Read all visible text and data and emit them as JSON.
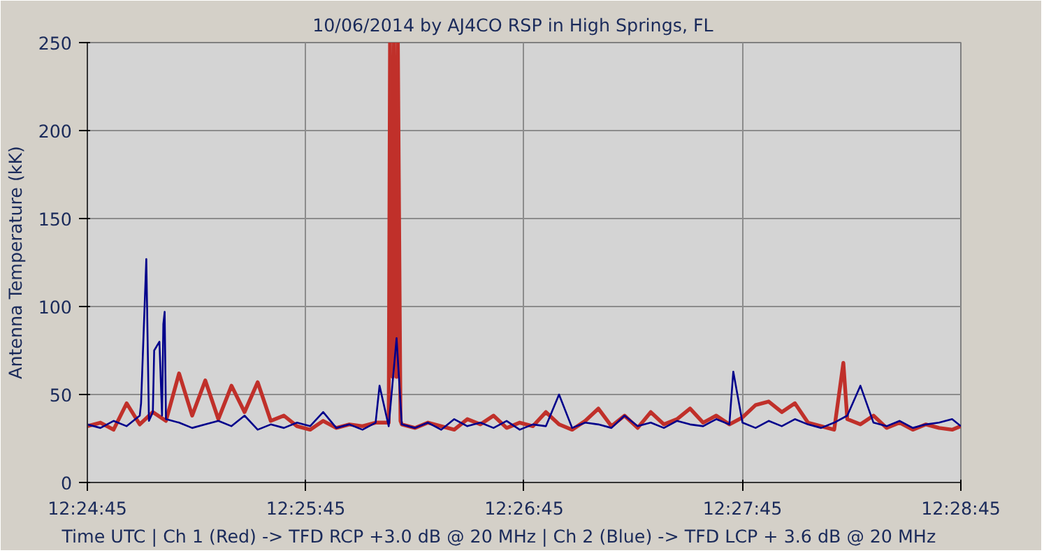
{
  "chart_data": {
    "type": "line",
    "title": "10/06/2014  by  AJ4CO RSP  in  High Springs, FL",
    "xlabel": "Time UTC   |   Ch 1 (Red) -> TFD RCP +3.0 dB @ 20 MHz   |   Ch 2 (Blue)  -> TFD LCP + 3.6 dB @ 20 MHz",
    "ylabel": "Antenna Temperature (kK)",
    "xlim": [
      12.4125,
      12.479167
    ],
    "xticks": [
      {
        "value": 12.4125,
        "label": "12:24:45"
      },
      {
        "value": 12.429167,
        "label": "12:25:45"
      },
      {
        "value": 12.445833,
        "label": "12:26:45"
      },
      {
        "value": 12.4625,
        "label": "12:27:45"
      },
      {
        "value": 12.479167,
        "label": "12:28:45"
      }
    ],
    "ylim": [
      0,
      250
    ],
    "yticks": [
      0,
      50,
      100,
      150,
      200,
      250
    ],
    "grid": true,
    "line_style": "solid",
    "series": [
      {
        "color": "#c0302a",
        "x": [
          12.4125,
          12.4135,
          12.4145,
          12.4155,
          12.4165,
          12.4175,
          12.4185,
          12.4195,
          12.4205,
          12.4215,
          12.4225,
          12.4235,
          12.4245,
          12.4255,
          12.4265,
          12.4275,
          12.4285,
          12.4295,
          12.4305,
          12.4315,
          12.4325,
          12.4335,
          12.4345,
          12.4355,
          12.4356,
          12.4358,
          12.4359,
          12.4361,
          12.4362,
          12.4364,
          12.4365,
          12.4375,
          12.4385,
          12.4395,
          12.4405,
          12.4415,
          12.4425,
          12.4435,
          12.4445,
          12.4455,
          12.4465,
          12.4475,
          12.4485,
          12.4495,
          12.4505,
          12.4515,
          12.4525,
          12.4535,
          12.4545,
          12.4555,
          12.4565,
          12.4575,
          12.4585,
          12.4595,
          12.4605,
          12.4615,
          12.4625,
          12.4635,
          12.4645,
          12.4655,
          12.4665,
          12.4675,
          12.4685,
          12.4695,
          12.4702,
          12.4705,
          12.4715,
          12.4725,
          12.4735,
          12.4745,
          12.4755,
          12.4765,
          12.4775,
          12.4785,
          12.479167
        ],
        "values": [
          32,
          34,
          30,
          45,
          33,
          40,
          35,
          62,
          38,
          58,
          36,
          55,
          40,
          57,
          35,
          38,
          32,
          30,
          35,
          31,
          33,
          32,
          34,
          34,
          250,
          60,
          250,
          60,
          250,
          35,
          33,
          31,
          34,
          32,
          30,
          36,
          33,
          38,
          31,
          34,
          32,
          40,
          33,
          30,
          35,
          42,
          32,
          38,
          31,
          40,
          33,
          36,
          42,
          34,
          38,
          33,
          37,
          44,
          46,
          40,
          45,
          34,
          32,
          30,
          68,
          36,
          33,
          38,
          31,
          34,
          30,
          33,
          31,
          30,
          32
        ]
      },
      {
        "color": "#00008b",
        "x": [
          12.4125,
          12.4135,
          12.4145,
          12.4155,
          12.4165,
          12.4166,
          12.417,
          12.4172,
          12.4175,
          12.4176,
          12.418,
          12.4182,
          12.4183,
          12.4184,
          12.4185,
          12.4195,
          12.4205,
          12.4215,
          12.4225,
          12.4235,
          12.4245,
          12.4255,
          12.4265,
          12.4275,
          12.4285,
          12.4295,
          12.4305,
          12.4315,
          12.4325,
          12.4335,
          12.4345,
          12.4348,
          12.4355,
          12.4361,
          12.4365,
          12.4375,
          12.4385,
          12.4395,
          12.4405,
          12.4415,
          12.4425,
          12.4435,
          12.4445,
          12.4455,
          12.4465,
          12.4475,
          12.4485,
          12.4495,
          12.4505,
          12.4515,
          12.4525,
          12.4535,
          12.4545,
          12.4555,
          12.4565,
          12.4575,
          12.4585,
          12.4595,
          12.4605,
          12.4615,
          12.4618,
          12.4625,
          12.4635,
          12.4645,
          12.4655,
          12.4665,
          12.4675,
          12.4685,
          12.4695,
          12.4705,
          12.4715,
          12.4725,
          12.4735,
          12.4745,
          12.4755,
          12.4765,
          12.4775,
          12.4785,
          12.479167
        ],
        "values": [
          33,
          31,
          35,
          32,
          38,
          45,
          127,
          35,
          40,
          75,
          80,
          38,
          90,
          97,
          36,
          34,
          31,
          33,
          35,
          32,
          38,
          30,
          33,
          31,
          34,
          32,
          40,
          31,
          33,
          30,
          34,
          55,
          32,
          82,
          33,
          31,
          34,
          30,
          36,
          32,
          34,
          31,
          35,
          30,
          33,
          32,
          50,
          31,
          34,
          33,
          31,
          38,
          32,
          34,
          31,
          35,
          33,
          32,
          36,
          33,
          63,
          34,
          31,
          35,
          32,
          36,
          33,
          31,
          34,
          38,
          55,
          34,
          32,
          35,
          31,
          33,
          34,
          36,
          32
        ]
      }
    ]
  }
}
